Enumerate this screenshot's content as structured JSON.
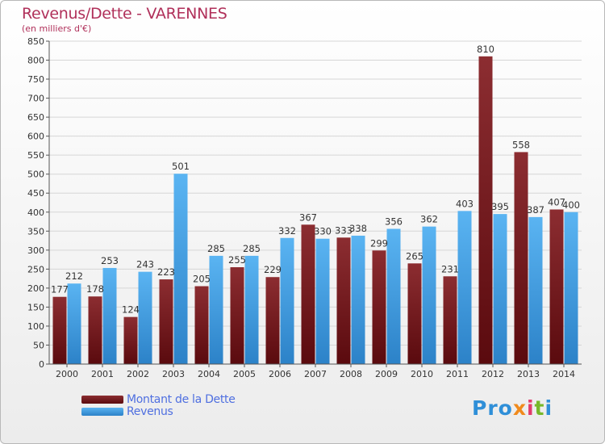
{
  "title": "Revenus/Dette - VARENNES",
  "subtitle": "(en milliers d'€)",
  "colors": {
    "dette": "#7a1e22",
    "revenus": "#3a9be2",
    "title": "#b0305a",
    "legend_text": "#4f6fe0"
  },
  "legend": {
    "dette_label": "Montant de la Dette",
    "revenus_label": "Revenus"
  },
  "logo": {
    "p": "Pro",
    "x": "x",
    "i1": "i",
    "t": "t",
    "i2": "i"
  },
  "chart_data": {
    "type": "bar",
    "title": "Revenus/Dette - VARENNES",
    "subtitle": "(en milliers d'€)",
    "categories": [
      "2000",
      "2001",
      "2002",
      "2003",
      "2004",
      "2005",
      "2006",
      "2007",
      "2008",
      "2009",
      "2010",
      "2011",
      "2012",
      "2013",
      "2014"
    ],
    "series": [
      {
        "name": "Montant de la Dette",
        "values": [
          177,
          178,
          124,
          223,
          205,
          255,
          229,
          367,
          333,
          299,
          265,
          231,
          810,
          558,
          407
        ]
      },
      {
        "name": "Revenus",
        "values": [
          212,
          253,
          243,
          501,
          285,
          285,
          332,
          330,
          338,
          356,
          362,
          403,
          395,
          387,
          400
        ]
      }
    ],
    "ylim": [
      0,
      850
    ],
    "yticks": [
      0,
      50,
      100,
      150,
      200,
      250,
      300,
      350,
      400,
      450,
      500,
      550,
      600,
      650,
      700,
      750,
      800,
      850
    ],
    "grid": true,
    "legend_position": "bottom-left"
  }
}
